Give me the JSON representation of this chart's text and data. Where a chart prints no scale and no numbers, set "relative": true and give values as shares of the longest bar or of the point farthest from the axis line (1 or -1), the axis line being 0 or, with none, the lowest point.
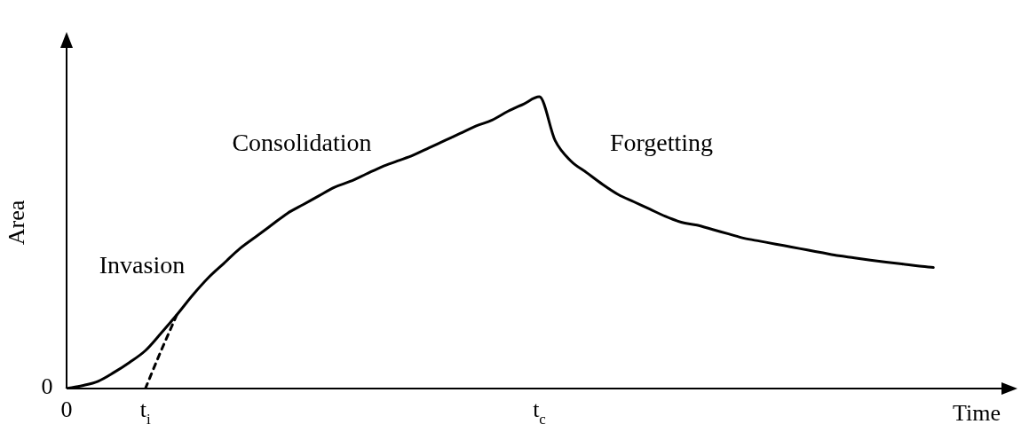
{
  "chart_data": {
    "type": "line",
    "relative": true,
    "xlabel": "Time",
    "ylabel": "Area",
    "marker": "none",
    "categories": [
      "0",
      null,
      null,
      null,
      null,
      "t$_{i}$",
      null,
      null,
      null,
      null,
      null,
      null,
      null,
      null,
      null,
      null,
      null,
      null,
      null,
      null,
      null,
      null,
      null,
      null,
      null,
      null,
      null,
      null,
      null,
      null,
      "t$_{c}$",
      null,
      null,
      null,
      null,
      null,
      null,
      null,
      null,
      null,
      null,
      null,
      null,
      null,
      null,
      null,
      null,
      null,
      null,
      null,
      null,
      null,
      null,
      null,
      null,
      null,
      null,
      null,
      null,
      null,
      null
    ],
    "series": [
      {
        "color": "#000000",
        "line_style": "solid",
        "values": [
          0,
          0.01,
          0.025,
          0.055,
          0.09,
          0.13,
          0.19,
          0.253,
          0.32,
          0.38,
          0.43,
          0.48,
          0.52,
          0.56,
          0.6,
          0.63,
          0.66,
          0.69,
          0.71,
          0.735,
          0.76,
          0.78,
          0.8,
          0.825,
          0.85,
          0.875,
          0.9,
          0.92,
          0.95,
          0.975,
          1,
          0.85,
          0.78,
          0.74,
          0.7,
          0.665,
          0.64,
          0.615,
          0.59,
          0.57,
          0.56,
          0.545,
          0.53,
          0.515,
          0.505,
          0.495,
          0.485,
          0.475,
          0.465,
          0.455,
          0.448,
          0.44,
          0.433,
          0.427,
          0.42,
          0.415,
          null,
          null,
          null,
          null,
          null
        ]
      },
      {
        "color": "#000000",
        "line_style": "dashed",
        "values": [
          null,
          null,
          null,
          null,
          null,
          0,
          0.13,
          0.253,
          null,
          null,
          null,
          null,
          null,
          null,
          null,
          null,
          null,
          null,
          null,
          null,
          null,
          null,
          null,
          null,
          null,
          null,
          null,
          null,
          null,
          null,
          null,
          null,
          null,
          null,
          null,
          null,
          null,
          null,
          null,
          null,
          null,
          null,
          null,
          null,
          null,
          null,
          null,
          null,
          null,
          null,
          null,
          null,
          null,
          null,
          null,
          null,
          null,
          null,
          null,
          null,
          null
        ]
      }
    ],
    "annotations": [
      "0",
      "Invasion",
      "Consolidation",
      "Forgetting"
    ]
  }
}
